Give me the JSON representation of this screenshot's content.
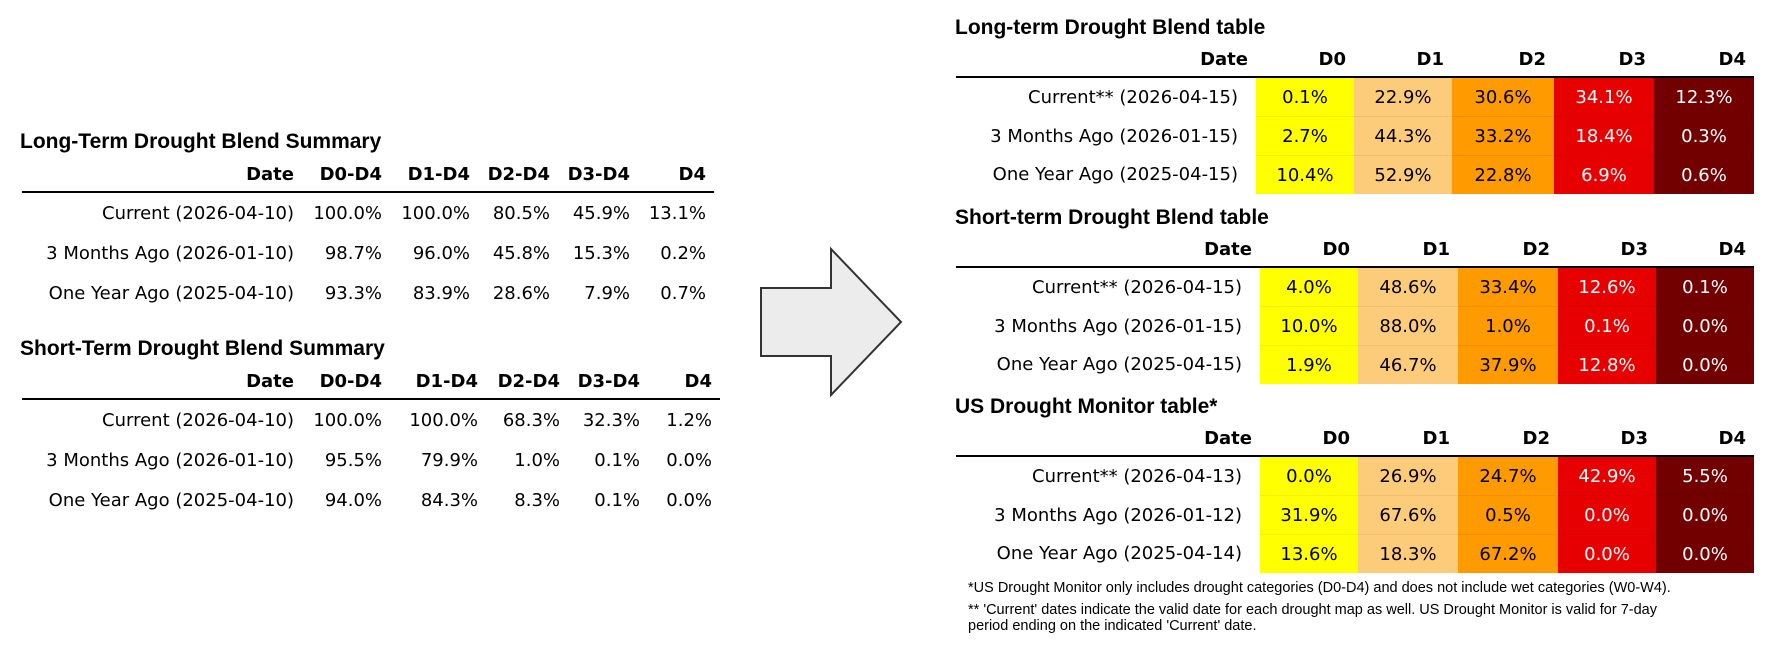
{
  "left": {
    "long_term": {
      "title": "Long-Term Drought Blend Summary",
      "headers": [
        "Date",
        "D0-D4",
        "D1-D4",
        "D2-D4",
        "D3-D4",
        "D4"
      ],
      "rows": [
        [
          "Current (2026-04-10)",
          "100.0%",
          "100.0%",
          "80.5%",
          "45.9%",
          "13.1%"
        ],
        [
          "3 Months Ago (2026-01-10)",
          "98.7%",
          "96.0%",
          "45.8%",
          "15.3%",
          "0.2%"
        ],
        [
          "One Year Ago (2025-04-10)",
          "93.3%",
          "83.9%",
          "28.6%",
          "7.9%",
          "0.7%"
        ]
      ]
    },
    "short_term": {
      "title": "Short-Term Drought Blend Summary",
      "headers": [
        "Date",
        "D0-D4",
        "D1-D4",
        "D2-D4",
        "D3-D4",
        "D4"
      ],
      "rows": [
        [
          "Current (2026-04-10)",
          "100.0%",
          "100.0%",
          "68.3%",
          "32.3%",
          "1.2%"
        ],
        [
          "3 Months Ago (2026-01-10)",
          "95.5%",
          "79.9%",
          "1.0%",
          "0.1%",
          "0.0%"
        ],
        [
          "One Year Ago (2025-04-10)",
          "94.0%",
          "84.3%",
          "8.3%",
          "0.1%",
          "0.0%"
        ]
      ]
    }
  },
  "arrow_icon": "right-arrow-icon",
  "right": {
    "category_colors": {
      "D0": "#ffff00",
      "D1": "#fdcc7a",
      "D2": "#ff9a00",
      "D3": "#e60000",
      "D4": "#730000"
    },
    "long_term": {
      "title": "Long-term Drought Blend table",
      "headers": [
        "Date",
        "D0",
        "D1",
        "D2",
        "D3",
        "D4"
      ],
      "rows": [
        [
          "Current** (2026-04-15)",
          "0.1%",
          "22.9%",
          "30.6%",
          "34.1%",
          "12.3%"
        ],
        [
          "3 Months Ago (2026-01-15)",
          "2.7%",
          "44.3%",
          "33.2%",
          "18.4%",
          "0.3%"
        ],
        [
          "One Year Ago (2025-04-15)",
          "10.4%",
          "52.9%",
          "22.8%",
          "6.9%",
          "0.6%"
        ]
      ]
    },
    "short_term": {
      "title": "Short-term Drought Blend table",
      "headers": [
        "Date",
        "D0",
        "D1",
        "D2",
        "D3",
        "D4"
      ],
      "rows": [
        [
          "Current** (2026-04-15)",
          "4.0%",
          "48.6%",
          "33.4%",
          "12.6%",
          "0.1%"
        ],
        [
          "3 Months Ago (2026-01-15)",
          "10.0%",
          "88.0%",
          "1.0%",
          "0.1%",
          "0.0%"
        ],
        [
          "One Year Ago (2025-04-15)",
          "1.9%",
          "46.7%",
          "37.9%",
          "12.8%",
          "0.0%"
        ]
      ]
    },
    "usdm": {
      "title": "US Drought Monitor table*",
      "headers": [
        "Date",
        "D0",
        "D1",
        "D2",
        "D3",
        "D4"
      ],
      "rows": [
        [
          "Current** (2026-04-13)",
          "0.0%",
          "26.9%",
          "24.7%",
          "42.9%",
          "5.5%"
        ],
        [
          "3 Months Ago (2026-01-12)",
          "31.9%",
          "67.6%",
          "0.5%",
          "0.0%",
          "0.0%"
        ],
        [
          "One Year Ago (2025-04-14)",
          "13.6%",
          "18.3%",
          "67.2%",
          "0.0%",
          "0.0%"
        ]
      ]
    },
    "footnotes": {
      "note1": "*US Drought Monitor only includes drought categories (D0-D4) and does not include wet categories (W0-W4).",
      "note2_line1": "** 'Current' dates indicate the valid date for each drought map as well. US Drought Monitor is valid for 7-day",
      "note2_line2": "period ending on the indicated 'Current' date."
    }
  }
}
